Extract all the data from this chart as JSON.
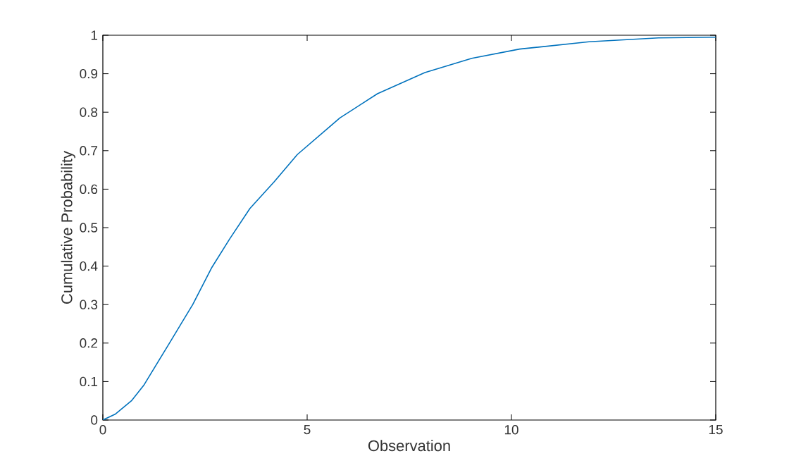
{
  "chart_data": {
    "type": "line",
    "xlabel": "Observation",
    "ylabel": "Cumulative Probability",
    "x": [
      0,
      0.3,
      0.7,
      1.0,
      1.63,
      2.2,
      2.67,
      3.1,
      3.6,
      4.2,
      4.76,
      5.56,
      5.8,
      6.72,
      7.88,
      9.03,
      10.2,
      11.9,
      13.6,
      15
    ],
    "series": [
      {
        "color": "#0072bd",
        "values": [
          0,
          0.015,
          0.05,
          0.09,
          0.2,
          0.3,
          0.397,
          0.47,
          0.55,
          0.62,
          0.69,
          0.763,
          0.785,
          0.848,
          0.903,
          0.94,
          0.964,
          0.983,
          0.993,
          0.995
        ]
      }
    ],
    "xlim": [
      0,
      15
    ],
    "ylim": [
      0,
      1
    ],
    "xticks": [
      0,
      5,
      10,
      15
    ],
    "yticks": [
      0,
      0.1,
      0.2,
      0.3,
      0.4,
      0.5,
      0.6,
      0.7,
      0.8,
      0.9,
      1
    ],
    "marker": "none",
    "line_style": "solid"
  }
}
